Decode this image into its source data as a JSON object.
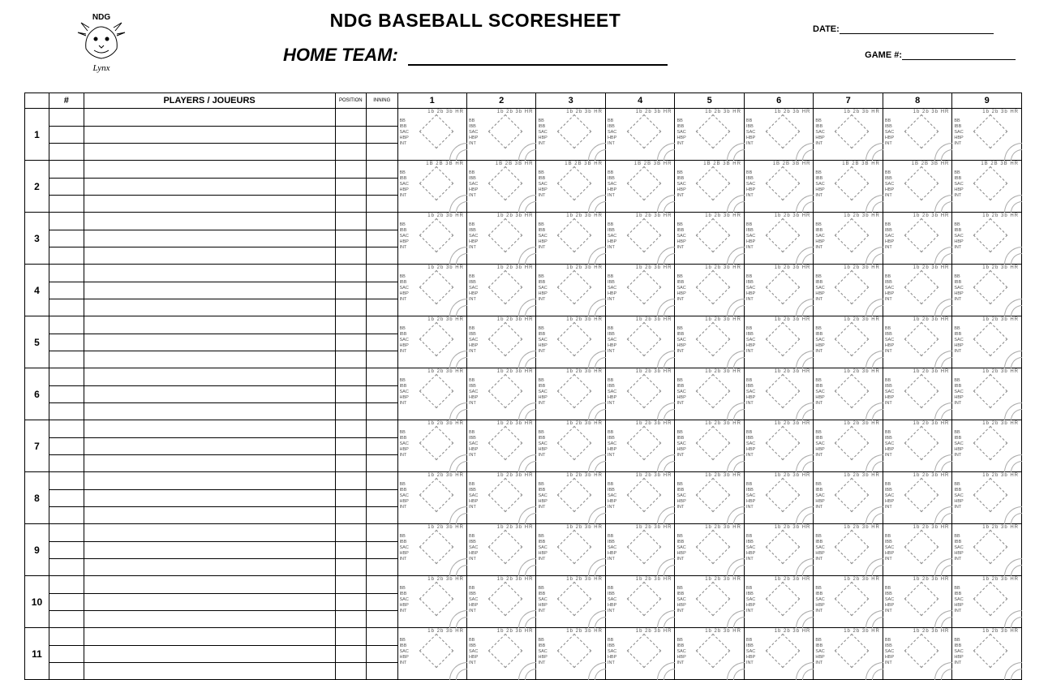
{
  "logo_text": "NDG",
  "logo_sub": "Lynx",
  "title": "NDG BASEBALL SCORESHEET",
  "team_label": "HOME TEAM:",
  "date_label": "DATE:",
  "game_label": "GAME #:",
  "header": {
    "num": "#",
    "players": "PLAYERS / JOUEURS",
    "position": "POSITION",
    "inning": "INNING"
  },
  "innings": [
    "1",
    "2",
    "3",
    "4",
    "5",
    "6",
    "7",
    "8",
    "9"
  ],
  "batters": [
    "1",
    "2",
    "3",
    "4",
    "5",
    "6",
    "7",
    "8",
    "9",
    "10",
    "11"
  ],
  "cell": {
    "hits_lower": "1b  2b  3b  HR",
    "hits_upper": "1B 2B 3B HR",
    "abbrs": [
      "BB",
      "IBB",
      "SAC",
      "HBP",
      "INT"
    ]
  },
  "style": {
    "background": "#ffffff",
    "border_color": "#000000",
    "muted_text": "#555555",
    "diamond_border": "#888888",
    "arc_border": "#aaaaaa"
  }
}
